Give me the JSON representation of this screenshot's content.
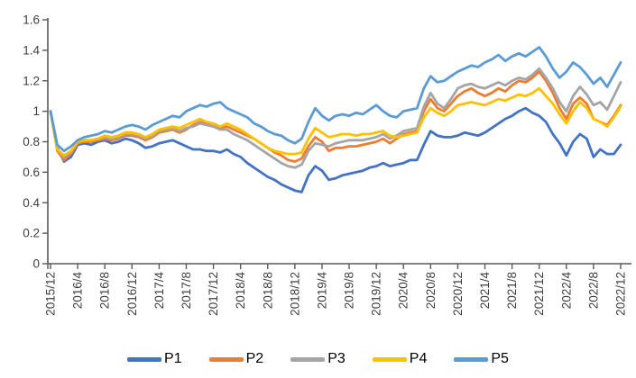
{
  "chart_data": {
    "type": "line",
    "title": "",
    "xlabel": "",
    "ylabel": "",
    "x_start": "2015/12",
    "x_end": "2022/12",
    "x_frequency": "monthly",
    "x_tick_labels": [
      "2015/12",
      "2016/4",
      "2016/8",
      "2016/12",
      "2017/4",
      "2017/8",
      "2017/12",
      "2018/4",
      "2018/8",
      "2018/12",
      "2019/4",
      "2019/8",
      "2019/12",
      "2020/4",
      "2020/8",
      "2020/12",
      "2021/4",
      "2021/8",
      "2021/12",
      "2022/4",
      "2022/8",
      "2022/12"
    ],
    "x_label_interval_months": 4,
    "y_tick_labels": [
      "0",
      "0.2",
      "0.4",
      "0.6",
      "0.8",
      "1",
      "1.2",
      "1.4",
      "1.6"
    ],
    "y_tick_values": [
      0,
      0.2,
      0.4,
      0.6,
      0.8,
      1,
      1.2,
      1.4,
      1.6
    ],
    "ylim": [
      0,
      1.6
    ],
    "grid": false,
    "legend_position": "bottom",
    "axis_color": "#595959",
    "label_color": "#404040",
    "series": [
      {
        "name": "P1",
        "color": "#4472C4",
        "values": [
          1.0,
          0.76,
          0.67,
          0.7,
          0.78,
          0.79,
          0.78,
          0.8,
          0.81,
          0.79,
          0.8,
          0.82,
          0.81,
          0.79,
          0.76,
          0.77,
          0.79,
          0.8,
          0.81,
          0.79,
          0.77,
          0.75,
          0.75,
          0.74,
          0.74,
          0.73,
          0.75,
          0.72,
          0.7,
          0.66,
          0.63,
          0.6,
          0.57,
          0.55,
          0.52,
          0.5,
          0.48,
          0.47,
          0.58,
          0.64,
          0.61,
          0.55,
          0.56,
          0.58,
          0.59,
          0.6,
          0.61,
          0.63,
          0.64,
          0.66,
          0.64,
          0.65,
          0.66,
          0.68,
          0.68,
          0.78,
          0.87,
          0.84,
          0.83,
          0.83,
          0.84,
          0.86,
          0.85,
          0.84,
          0.86,
          0.89,
          0.92,
          0.95,
          0.97,
          1.0,
          1.02,
          0.99,
          0.97,
          0.93,
          0.85,
          0.79,
          0.71,
          0.8,
          0.85,
          0.82,
          0.7,
          0.75,
          0.72,
          0.72,
          0.78
        ]
      },
      {
        "name": "P2",
        "color": "#ED7D31",
        "values": [
          1.0,
          0.74,
          0.68,
          0.72,
          0.79,
          0.8,
          0.8,
          0.81,
          0.82,
          0.81,
          0.82,
          0.84,
          0.84,
          0.83,
          0.81,
          0.83,
          0.86,
          0.87,
          0.88,
          0.86,
          0.88,
          0.91,
          0.93,
          0.92,
          0.92,
          0.89,
          0.9,
          0.88,
          0.86,
          0.84,
          0.82,
          0.79,
          0.76,
          0.73,
          0.71,
          0.68,
          0.67,
          0.69,
          0.77,
          0.83,
          0.8,
          0.74,
          0.76,
          0.76,
          0.77,
          0.77,
          0.78,
          0.79,
          0.8,
          0.82,
          0.79,
          0.82,
          0.85,
          0.86,
          0.87,
          1.0,
          1.08,
          1.02,
          1.0,
          1.05,
          1.1,
          1.13,
          1.15,
          1.12,
          1.1,
          1.12,
          1.15,
          1.13,
          1.17,
          1.2,
          1.19,
          1.22,
          1.26,
          1.2,
          1.12,
          1.02,
          0.95,
          1.05,
          1.09,
          1.05,
          0.95,
          0.93,
          0.91,
          0.97,
          1.04
        ]
      },
      {
        "name": "P3",
        "color": "#A5A5A5",
        "values": [
          1.0,
          0.75,
          0.7,
          0.73,
          0.8,
          0.81,
          0.81,
          0.82,
          0.83,
          0.82,
          0.83,
          0.85,
          0.85,
          0.84,
          0.82,
          0.84,
          0.87,
          0.88,
          0.89,
          0.87,
          0.89,
          0.9,
          0.92,
          0.91,
          0.9,
          0.88,
          0.88,
          0.85,
          0.83,
          0.81,
          0.78,
          0.75,
          0.72,
          0.69,
          0.66,
          0.64,
          0.63,
          0.65,
          0.74,
          0.79,
          0.78,
          0.77,
          0.79,
          0.8,
          0.81,
          0.81,
          0.81,
          0.82,
          0.83,
          0.85,
          0.82,
          0.84,
          0.87,
          0.88,
          0.89,
          1.03,
          1.12,
          1.05,
          1.02,
          1.08,
          1.15,
          1.17,
          1.18,
          1.16,
          1.15,
          1.17,
          1.19,
          1.17,
          1.2,
          1.22,
          1.21,
          1.24,
          1.28,
          1.22,
          1.15,
          1.06,
          1.0,
          1.1,
          1.16,
          1.11,
          1.04,
          1.06,
          1.01,
          1.1,
          1.19
        ]
      },
      {
        "name": "P4",
        "color": "#FFC000",
        "values": [
          1.0,
          0.75,
          0.71,
          0.74,
          0.8,
          0.81,
          0.81,
          0.82,
          0.84,
          0.83,
          0.84,
          0.86,
          0.86,
          0.85,
          0.83,
          0.85,
          0.88,
          0.89,
          0.9,
          0.89,
          0.91,
          0.93,
          0.95,
          0.93,
          0.92,
          0.9,
          0.92,
          0.9,
          0.88,
          0.85,
          0.82,
          0.79,
          0.76,
          0.74,
          0.73,
          0.72,
          0.72,
          0.73,
          0.82,
          0.89,
          0.86,
          0.83,
          0.84,
          0.85,
          0.85,
          0.84,
          0.85,
          0.85,
          0.86,
          0.87,
          0.84,
          0.83,
          0.84,
          0.85,
          0.86,
          0.96,
          1.02,
          0.99,
          0.97,
          1.0,
          1.04,
          1.05,
          1.06,
          1.05,
          1.04,
          1.06,
          1.08,
          1.07,
          1.09,
          1.11,
          1.1,
          1.12,
          1.15,
          1.1,
          1.05,
          0.98,
          0.92,
          1.0,
          1.06,
          1.02,
          0.95,
          0.93,
          0.9,
          0.96,
          1.03
        ]
      },
      {
        "name": "P5",
        "color": "#5B9BD5",
        "values": [
          1.0,
          0.78,
          0.74,
          0.77,
          0.81,
          0.83,
          0.84,
          0.85,
          0.87,
          0.86,
          0.88,
          0.9,
          0.91,
          0.9,
          0.88,
          0.91,
          0.93,
          0.95,
          0.97,
          0.96,
          1.0,
          1.02,
          1.04,
          1.03,
          1.05,
          1.06,
          1.02,
          1.0,
          0.98,
          0.96,
          0.92,
          0.9,
          0.87,
          0.85,
          0.84,
          0.81,
          0.79,
          0.82,
          0.93,
          1.02,
          0.97,
          0.94,
          0.97,
          0.98,
          0.97,
          0.99,
          0.98,
          1.01,
          1.04,
          1.0,
          0.97,
          0.96,
          1.0,
          1.01,
          1.02,
          1.15,
          1.23,
          1.19,
          1.2,
          1.23,
          1.26,
          1.28,
          1.3,
          1.29,
          1.32,
          1.34,
          1.37,
          1.33,
          1.36,
          1.38,
          1.36,
          1.39,
          1.42,
          1.36,
          1.28,
          1.22,
          1.26,
          1.32,
          1.29,
          1.24,
          1.18,
          1.22,
          1.16,
          1.24,
          1.32
        ]
      }
    ]
  },
  "legend": {
    "items": [
      {
        "label": "P1"
      },
      {
        "label": "P2"
      },
      {
        "label": "P3"
      },
      {
        "label": "P4"
      },
      {
        "label": "P5"
      }
    ]
  }
}
